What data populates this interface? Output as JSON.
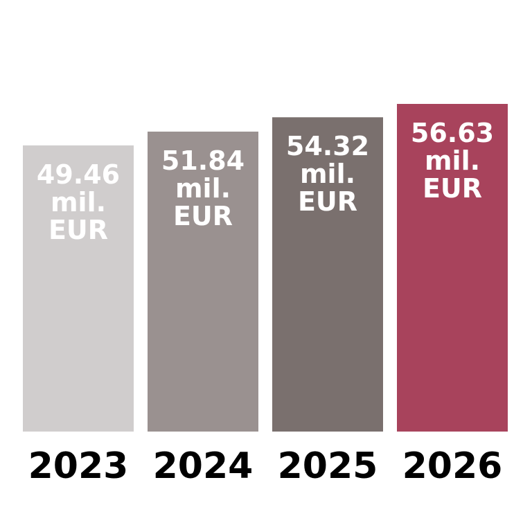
{
  "chart_data": {
    "type": "bar",
    "categories": [
      "2023",
      "2024",
      "2025",
      "2026"
    ],
    "values": [
      49.46,
      51.84,
      54.32,
      56.63
    ],
    "value_labels": [
      "49.46 mil. EUR",
      "51.84 mil. EUR",
      "54.32 mil. EUR",
      "56.63 mil. EUR"
    ],
    "colors": [
      "#d0cdcd",
      "#9a9190",
      "#7a706e",
      "#a8435c"
    ]
  }
}
